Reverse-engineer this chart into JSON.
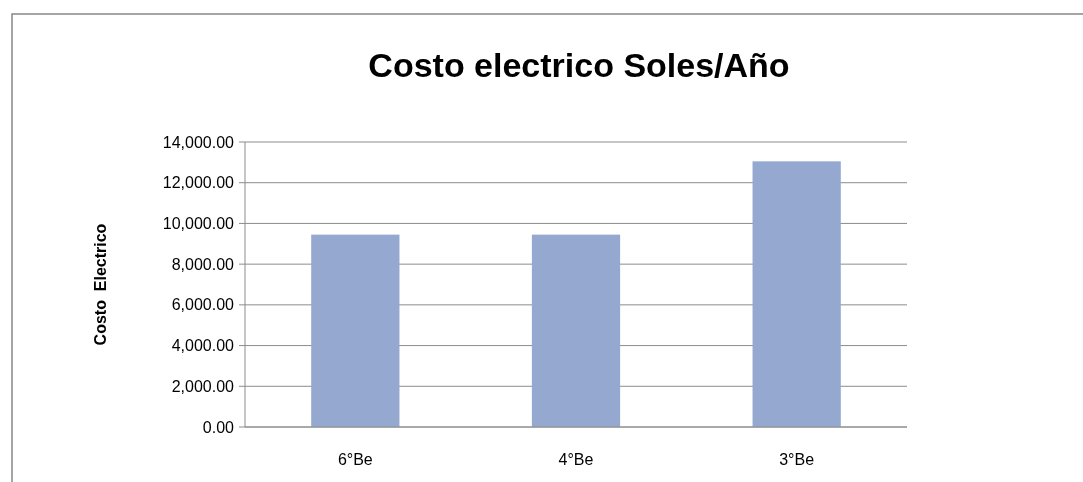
{
  "chart_data": {
    "type": "bar",
    "title": "Costo electrico Soles/Año",
    "ylabel": "Costo  Electrico",
    "categories": [
      "6°Be",
      "4°Be",
      "3°Be"
    ],
    "values": [
      9450,
      9450,
      13050
    ],
    "color": "#95a9d0",
    "ylim": [
      0,
      14000
    ],
    "yticks": [
      {
        "value": 0,
        "label": "0.00"
      },
      {
        "value": 2000,
        "label": "2,000.00"
      },
      {
        "value": 4000,
        "label": "4,000.00"
      },
      {
        "value": 6000,
        "label": "6,000.00"
      },
      {
        "value": 8000,
        "label": "8,000.00"
      },
      {
        "value": 10000,
        "label": "10,000.00"
      },
      {
        "value": 12000,
        "label": "12,000.00"
      },
      {
        "value": 14000,
        "label": "14,000.00"
      }
    ],
    "grid": "y"
  }
}
